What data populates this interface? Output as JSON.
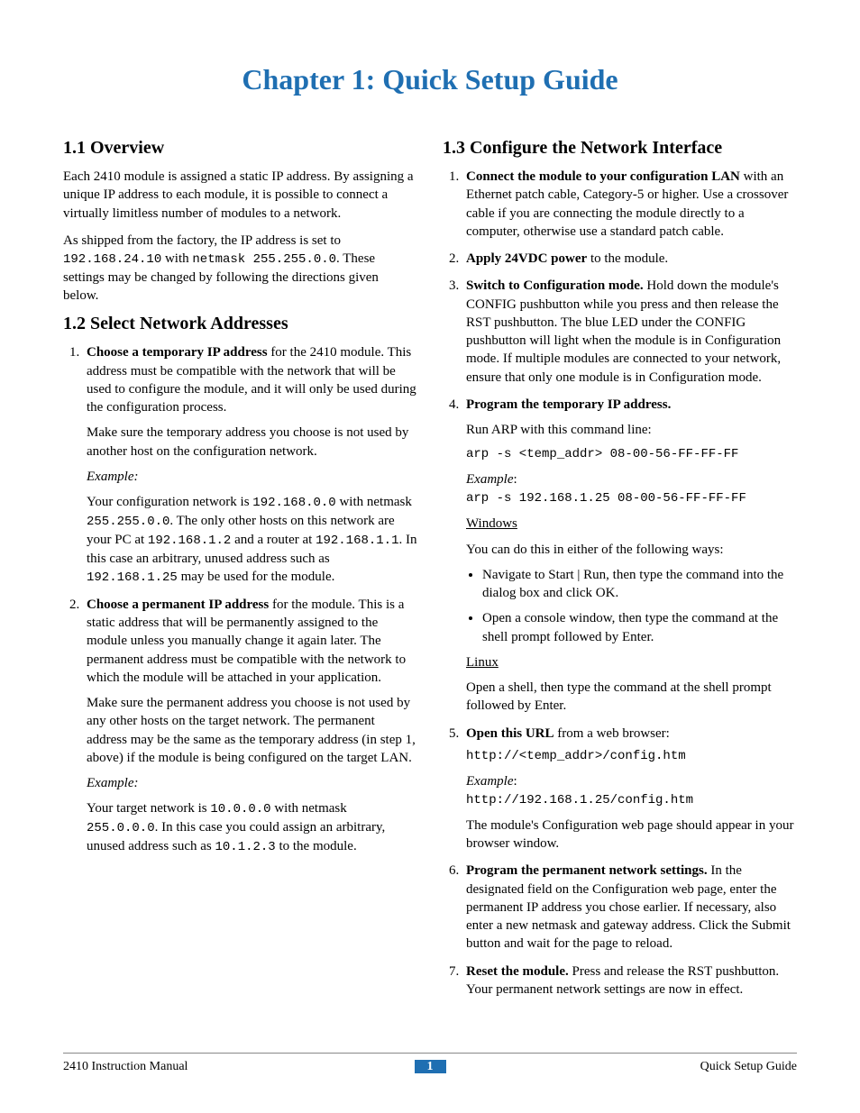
{
  "title": "Chapter 1: Quick Setup Guide",
  "sections": {
    "s11": {
      "heading": "1.1  Overview",
      "p1a": "Each 2410 module is assigned a static IP address. By assigning a unique IP address to each module, it is possible to connect a virtually limitless number of modules to a network.",
      "p2a": "As shipped from the factory, the IP address is set to ",
      "p2_ip": "192.168.24.10",
      "p2b": " with ",
      "p2_nm_label": "netmask",
      "p2_nm": " 255.255.0.0",
      "p2c": ". These settings may be changed by following the directions given below."
    },
    "s12": {
      "heading": "1.2  Select Network Addresses",
      "li1_lead": "Choose a temporary IP address",
      "li1_rest": " for the 2410 module. This address must be compatible with the network that will be used to configure the module, and it will only be used during the configuration process.",
      "li1_p2": "Make sure the temporary address you choose is not used by another host on the configuration network.",
      "li1_ex_label": "Example:",
      "li1_ex_a": "Your configuration network is ",
      "li1_ex_ip1": "192.168.0.0",
      "li1_ex_b": " with netmask ",
      "li1_ex_nm": "255.255.0.0",
      "li1_ex_c": ". The only other hosts on this network are your PC at ",
      "li1_ex_ip2": "192.168.1.2",
      "li1_ex_d": " and a router at ",
      "li1_ex_ip3": "192.168.1.1",
      "li1_ex_e": ". In this case an arbitrary, unused address such as ",
      "li1_ex_ip4": "192.168.1.25",
      "li1_ex_f": " may be used for the module.",
      "li2_lead": "Choose a permanent IP address",
      "li2_rest": " for the module. This is a static address that will be permanently assigned to the module unless you manually change it again later. The permanent address must be compatible with the network to which the module will be attached in your application.",
      "li2_p2": "Make sure the permanent address you choose is not used by any other hosts on the target network. The permanent address may be the same as the temporary address (in step 1, above) if the module is being configured on the target LAN.",
      "li2_ex_label": "Example:",
      "li2_ex_a": "Your target network is ",
      "li2_ex_ip1": "10.0.0.0",
      "li2_ex_b": " with netmask ",
      "li2_ex_nm": "255.0.0.0",
      "li2_ex_c": ". In this case you could assign an arbitrary, unused address such as ",
      "li2_ex_ip2": "10.1.2.3",
      "li2_ex_d": " to the module."
    },
    "s13": {
      "heading": "1.3  Configure the Network Interface",
      "li1_lead": "Connect the module to your configuration LAN",
      "li1_rest": " with an Ethernet patch cable, Category-5 or higher. Use a crossover cable if you are connecting the module directly to a computer, otherwise use a standard patch cable.",
      "li2_lead": "Apply 24VDC power",
      "li2_rest": " to the module.",
      "li3_lead": "Switch to Configuration mode.",
      "li3_rest": " Hold down the module's CONFIG pushbutton while you press and then release the RST pushbutton. The blue LED under the CONFIG pushbutton will light when the module is in Configuration mode. If multiple modules are connected to your network, ensure that only one module is in Configuration mode.",
      "li4_lead": "Program the temporary IP address.",
      "li4_p1": "Run ARP with this command line:",
      "li4_cmd1": "arp -s <temp_addr> 08-00-56-FF-FF-FF",
      "li4_ex_label": "Example",
      "li4_cmd2": "arp -s 192.168.1.25 08-00-56-FF-FF-FF",
      "li4_win": "Windows",
      "li4_win_intro": "You can do this in either of the following ways:",
      "li4_win_b1": "Navigate to Start | Run, then type the command into the dialog box and click OK.",
      "li4_win_b2": "Open a console window, then type the command at the shell prompt followed by Enter.",
      "li4_lin": "Linux",
      "li4_lin_p": "Open a shell, then type the command at the shell prompt followed by Enter.",
      "li5_lead": "Open this URL",
      "li5_rest": " from a web browser:",
      "li5_cmd1": "http://<temp_addr>/config.htm",
      "li5_ex_label": "Example",
      "li5_cmd2": "http://192.168.1.25/config.htm",
      "li5_p2": "The module's Configuration web page should appear in your browser window.",
      "li6_lead": "Program the permanent network settings.",
      "li6_rest": "  In the designated field on the Configuration web page, enter the permanent IP address you chose earlier. If necessary, also enter a new netmask and gateway address. Click the Submit button and wait for the page to reload.",
      "li7_lead": "Reset the module.",
      "li7_rest": "  Press and release the RST pushbutton. Your permanent network settings are now in effect."
    }
  },
  "footer": {
    "left": "2410 Instruction Manual",
    "page": "1",
    "right": "Quick Setup Guide"
  },
  "colors": {
    "accent": "#1f6fb2",
    "text": "#000000",
    "rule": "#888888"
  }
}
